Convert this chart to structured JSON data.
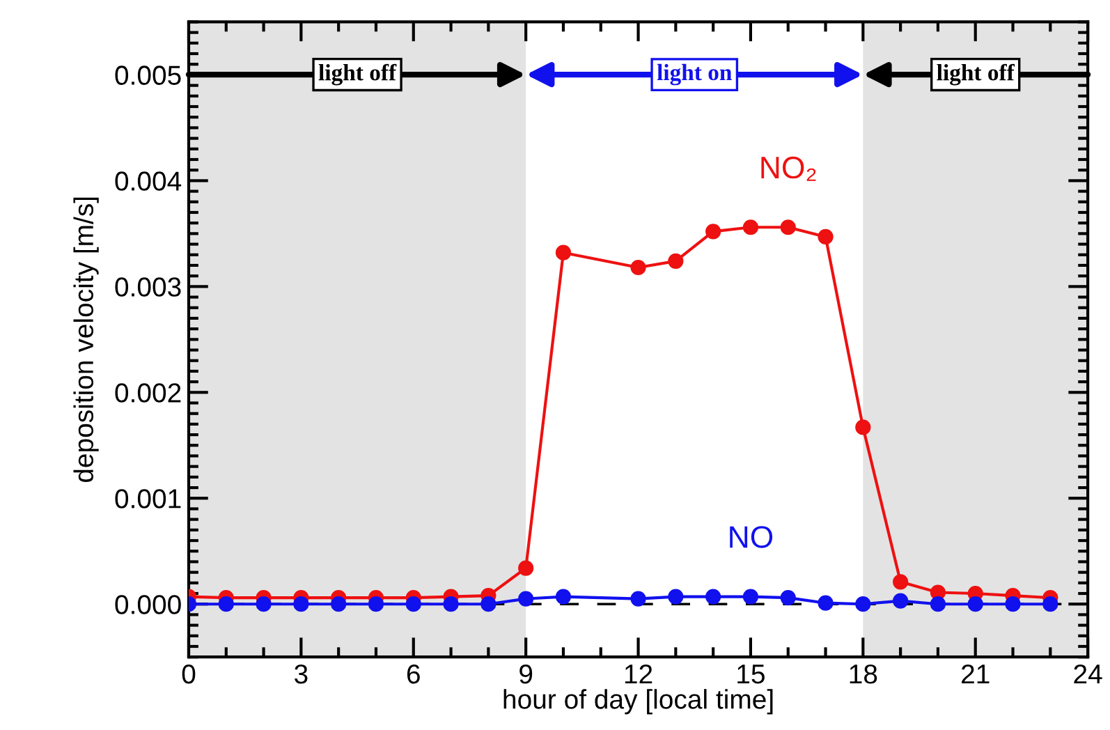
{
  "chart_data": {
    "type": "line",
    "xlabel": "hour of day [local time]",
    "ylabel": "deposition velocity [m/s]",
    "xlim": [
      0,
      24
    ],
    "xticks": [
      0,
      3,
      6,
      9,
      12,
      15,
      18,
      21,
      24
    ],
    "ylim": [
      -0.0005,
      0.0055
    ],
    "yticks": [
      {
        "value": 0,
        "label": "0.000"
      },
      {
        "value": 0.001,
        "label": "0.001"
      },
      {
        "value": 0.002,
        "label": "0.002"
      },
      {
        "value": 0.003,
        "label": "0.003"
      },
      {
        "value": 0.004,
        "label": "0.004"
      },
      {
        "value": 0.005,
        "label": "0.005"
      }
    ],
    "marker": "circle",
    "grid": false,
    "legend": false,
    "series": [
      {
        "name": "NO₂",
        "color": "#ee1111",
        "x": [
          0,
          1,
          2,
          3,
          4,
          5,
          6,
          7,
          8,
          9,
          10,
          12,
          13,
          14,
          15,
          16,
          17,
          18,
          19,
          20,
          21,
          22,
          23
        ],
        "values": [
          7e-05,
          6e-05,
          6e-05,
          6e-05,
          6e-05,
          6e-05,
          6e-05,
          7e-05,
          8e-05,
          0.00034,
          0.00332,
          0.00318,
          0.00324,
          0.00352,
          0.00356,
          0.00356,
          0.00347,
          0.00167,
          0.00021,
          0.00011,
          0.0001,
          8e-05,
          6e-05
        ]
      },
      {
        "name": "NO",
        "color": "#1111ee",
        "x": [
          0,
          1,
          2,
          3,
          4,
          5,
          6,
          7,
          8,
          9,
          10,
          12,
          13,
          14,
          15,
          16,
          17,
          18,
          19,
          20,
          21,
          22,
          23
        ],
        "values": [
          0.0,
          0.0,
          0.0,
          0.0,
          0.0,
          0.0,
          0.0,
          0.0,
          0.0,
          5e-05,
          7e-05,
          5e-05,
          7e-05,
          7e-05,
          7e-05,
          6e-05,
          1e-05,
          0.0,
          3e-05,
          0.0,
          0.0,
          0.0,
          0.0
        ]
      }
    ],
    "annotations": [
      "light on"
    ],
    "ref_lines": [
      {
        "axis": "y",
        "value": 0,
        "color": "#000000",
        "line_style": "dashed"
      }
    ],
    "bands": [
      {
        "axis": "x",
        "from": 0,
        "to": 9,
        "label": "light off",
        "color": "#e3e3e3"
      },
      {
        "axis": "x",
        "from": 18,
        "to": 24,
        "label": "light off",
        "color": "#e3e3e3"
      }
    ]
  }
}
